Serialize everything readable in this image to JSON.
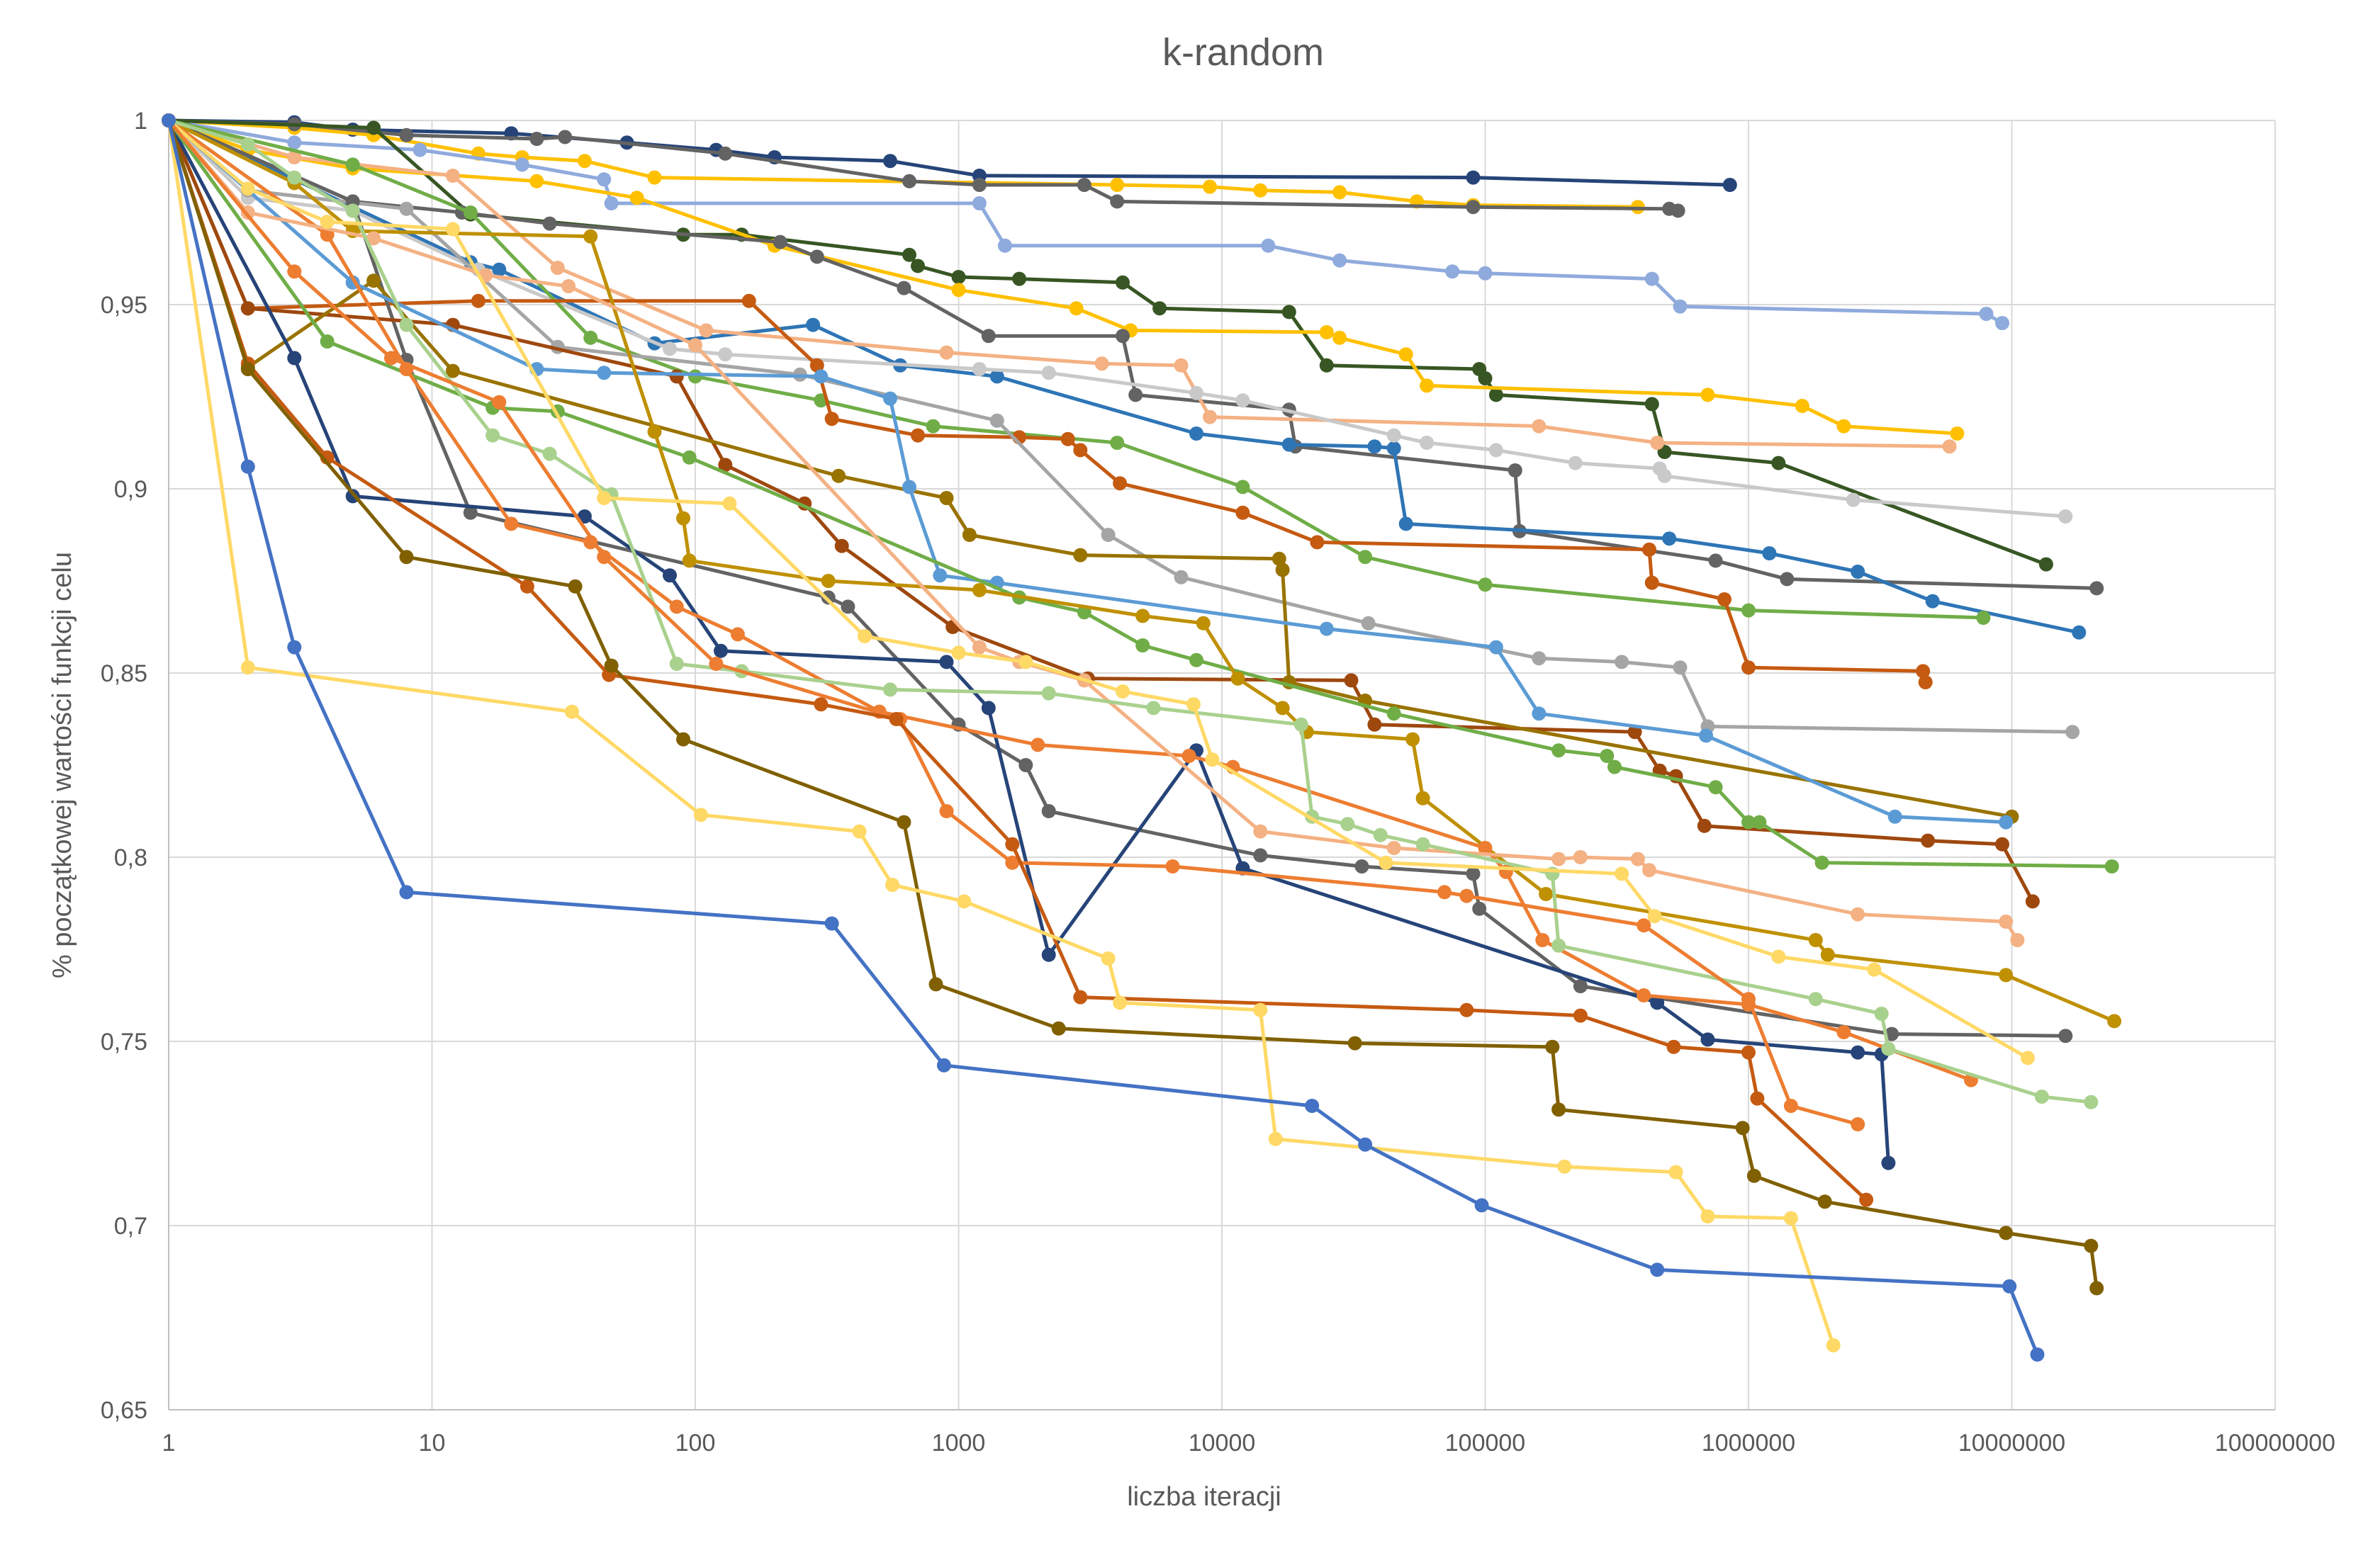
{
  "chart_data": {
    "type": "line",
    "title": "k-random",
    "xlabel": "liczba iteracji",
    "ylabel": "% początkowej wartości funkcji celu",
    "x_scale": "log10",
    "xlim": [
      1,
      100000000
    ],
    "ylim": [
      0.65,
      1
    ],
    "x_ticks": [
      1,
      10,
      100,
      1000,
      10000,
      100000,
      1000000,
      10000000,
      100000000
    ],
    "x_tick_labels": [
      "1",
      "10",
      "100",
      "1000",
      "10000",
      "100000",
      "1000000",
      "10000000",
      "100000000"
    ],
    "y_ticks": [
      0.65,
      0.7,
      0.75,
      0.8,
      0.85,
      0.9,
      0.95,
      1
    ],
    "y_tick_labels": [
      "0,65",
      "0,7",
      "0,75",
      "0,8",
      "0,85",
      "0,9",
      "0,95",
      "1"
    ],
    "grid": "horizontal and vertical major gridlines",
    "legend": "none",
    "series": [
      {
        "color": "#264478",
        "x": [
          1,
          3,
          5,
          20,
          55,
          120,
          200,
          550,
          1200,
          90000,
          850000
        ],
        "y": [
          1,
          0.9995,
          0.9975,
          0.9965,
          0.994,
          0.992,
          0.99,
          0.989,
          0.985,
          0.9845,
          0.9825
        ]
      },
      {
        "color": "#FFC000",
        "x": [
          1,
          3,
          6,
          15,
          22,
          38,
          70,
          4000,
          9000,
          14000,
          28000,
          55000,
          90000,
          380000
        ],
        "y": [
          1,
          0.998,
          0.996,
          0.991,
          0.99,
          0.989,
          0.9845,
          0.9825,
          0.982,
          0.981,
          0.9805,
          0.978,
          0.977,
          0.9765
        ]
      },
      {
        "color": "#636363",
        "x": [
          1,
          3,
          8,
          25,
          32,
          130,
          650,
          1200,
          3000,
          4000,
          90000,
          500000,
          540000
        ],
        "y": [
          1,
          0.999,
          0.996,
          0.995,
          0.9955,
          0.991,
          0.9835,
          0.9825,
          0.9825,
          0.978,
          0.9765,
          0.976,
          0.9755
        ]
      },
      {
        "color": "#8FAADC",
        "x": [
          1,
          3,
          9,
          22,
          45,
          48,
          1200,
          1500,
          15000,
          28000,
          75000,
          100000,
          430000,
          550000,
          8000000,
          9200000
        ],
        "y": [
          1,
          0.994,
          0.992,
          0.988,
          0.984,
          0.9775,
          0.9775,
          0.966,
          0.966,
          0.962,
          0.959,
          0.9585,
          0.957,
          0.9495,
          0.9475,
          0.945
        ]
      },
      {
        "color": "#375623",
        "x": [
          1,
          6,
          14,
          90,
          150,
          650,
          700,
          1000,
          1700,
          4200,
          5800,
          18000,
          25000,
          95000,
          100000,
          110000,
          430000,
          480000,
          1300000,
          13500000
        ],
        "y": [
          1,
          0.998,
          0.9745,
          0.969,
          0.969,
          0.9635,
          0.9605,
          0.9575,
          0.957,
          0.956,
          0.949,
          0.948,
          0.9335,
          0.9325,
          0.93,
          0.9255,
          0.923,
          0.91,
          0.907,
          0.8795
        ]
      },
      {
        "color": "#FFC000",
        "x": [
          1,
          2,
          5,
          25,
          60,
          200,
          1000,
          2800,
          4500,
          25000,
          28000,
          50000,
          60000,
          700000,
          1600000,
          2300000,
          6200000
        ],
        "y": [
          1,
          0.992,
          0.987,
          0.9835,
          0.979,
          0.966,
          0.954,
          0.949,
          0.943,
          0.9425,
          0.941,
          0.9365,
          0.928,
          0.9255,
          0.9225,
          0.917,
          0.915
        ]
      },
      {
        "color": "#636363",
        "x": [
          1,
          5,
          13,
          28,
          210,
          290,
          620,
          1300,
          4200,
          4700,
          18000,
          19000,
          130000,
          135000,
          750000,
          1400000,
          21000000
        ],
        "y": [
          1,
          0.978,
          0.975,
          0.972,
          0.967,
          0.963,
          0.9545,
          0.9415,
          0.9415,
          0.9255,
          0.9215,
          0.9115,
          0.905,
          0.8885,
          0.8805,
          0.8755,
          0.873
        ]
      },
      {
        "color": "#2E75B6",
        "x": [
          1,
          14,
          18,
          70,
          280,
          600,
          1400,
          8000,
          18000,
          38000,
          45000,
          50000,
          500000,
          1200000,
          2600000,
          5000000,
          18000000
        ],
        "y": [
          1,
          0.9615,
          0.9595,
          0.9395,
          0.9445,
          0.9335,
          0.9305,
          0.915,
          0.912,
          0.9115,
          0.911,
          0.8905,
          0.8865,
          0.8825,
          0.8775,
          0.8695,
          0.861
        ]
      },
      {
        "color": "#F4B183",
        "x": [
          1,
          3,
          12,
          30,
          110,
          900,
          3500,
          7000,
          9000,
          160000,
          450000,
          5800000
        ],
        "y": [
          1,
          0.99,
          0.985,
          0.96,
          0.943,
          0.937,
          0.934,
          0.9335,
          0.9195,
          0.917,
          0.9125,
          0.9115
        ]
      },
      {
        "color": "#C9C9C9",
        "x": [
          1,
          2,
          5,
          15,
          80,
          130,
          1200,
          2200,
          8000,
          12000,
          45000,
          60000,
          110000,
          220000,
          460000,
          480000,
          2500000,
          16000000
        ],
        "y": [
          1,
          0.979,
          0.9755,
          0.9595,
          0.938,
          0.9365,
          0.9325,
          0.9315,
          0.926,
          0.924,
          0.9145,
          0.9125,
          0.9105,
          0.907,
          0.9055,
          0.9035,
          0.897,
          0.8925
        ]
      },
      {
        "color": "#70AD47",
        "x": [
          1,
          5,
          14,
          40,
          100,
          300,
          800,
          4000,
          12000,
          35000,
          100000,
          1000000,
          7800000
        ],
        "y": [
          1,
          0.988,
          0.975,
          0.941,
          0.9305,
          0.924,
          0.917,
          0.9125,
          0.9005,
          0.8815,
          0.874,
          0.867,
          0.865
        ]
      },
      {
        "color": "#C55A11",
        "x": [
          1,
          2,
          15,
          160,
          290,
          330,
          700,
          1700,
          2600,
          2900,
          4100,
          12000,
          23000,
          420000,
          430000,
          810000,
          1000000,
          4600000,
          4700000
        ],
        "y": [
          1,
          0.949,
          0.951,
          0.951,
          0.9335,
          0.919,
          0.9145,
          0.914,
          0.9135,
          0.9105,
          0.9015,
          0.8935,
          0.8855,
          0.8835,
          0.8745,
          0.87,
          0.8515,
          0.8505,
          0.8475
        ]
      },
      {
        "color": "#A5A5A5",
        "x": [
          1,
          2,
          8,
          30,
          250,
          1400,
          3700,
          7000,
          36000,
          160000,
          330000,
          550000,
          700000,
          17000000
        ],
        "y": [
          1,
          0.981,
          0.976,
          0.9385,
          0.931,
          0.9185,
          0.8875,
          0.876,
          0.8635,
          0.854,
          0.853,
          0.8515,
          0.8355,
          0.834
        ]
      },
      {
        "color": "#636363",
        "x": [
          1,
          5,
          8,
          14,
          320,
          380,
          1000,
          1800,
          2200,
          14000,
          34000,
          90000,
          95000,
          230000,
          3500000,
          16000000
        ],
        "y": [
          1,
          0.978,
          0.935,
          0.8935,
          0.8705,
          0.868,
          0.836,
          0.825,
          0.8125,
          0.8005,
          0.7975,
          0.7955,
          0.786,
          0.765,
          0.752,
          0.7515
        ]
      },
      {
        "color": "#9E480E",
        "x": [
          1,
          2,
          12,
          85,
          130,
          260,
          360,
          950,
          3100,
          31000,
          38000,
          370000,
          460000,
          530000,
          680000,
          4800000,
          9200000,
          12000000
        ],
        "y": [
          1,
          0.949,
          0.9445,
          0.9305,
          0.9065,
          0.896,
          0.8845,
          0.8625,
          0.8485,
          0.848,
          0.836,
          0.834,
          0.8235,
          0.822,
          0.8085,
          0.8045,
          0.8035,
          0.788
        ]
      },
      {
        "color": "#997300",
        "x": [
          1,
          2,
          6,
          12,
          350,
          900,
          1100,
          2900,
          16500,
          17000,
          18000,
          35000,
          10000000
        ],
        "y": [
          1,
          0.933,
          0.9565,
          0.932,
          0.9035,
          0.8975,
          0.8875,
          0.882,
          0.881,
          0.878,
          0.8475,
          0.8425,
          0.811
        ]
      },
      {
        "color": "#264478",
        "x": [
          1,
          3,
          5,
          38,
          80,
          125,
          900,
          1300,
          2200,
          8000,
          12000,
          450000,
          700000,
          2600000,
          3200000,
          3400000
        ],
        "y": [
          1,
          0.9355,
          0.898,
          0.8925,
          0.8765,
          0.856,
          0.853,
          0.8405,
          0.7735,
          0.829,
          0.797,
          0.7605,
          0.7505,
          0.747,
          0.7465,
          0.717
        ]
      },
      {
        "color": "#5B9BD5",
        "x": [
          1,
          5,
          25,
          45,
          300,
          550,
          650,
          850,
          1400,
          25000,
          110000,
          160000,
          690000,
          3600000,
          9500000
        ],
        "y": [
          1,
          0.956,
          0.9325,
          0.9315,
          0.9305,
          0.9245,
          0.9005,
          0.8765,
          0.8745,
          0.862,
          0.857,
          0.839,
          0.833,
          0.811,
          0.8095
        ]
      },
      {
        "color": "#70AD47",
        "x": [
          1,
          4,
          17,
          30,
          95,
          1700,
          3000,
          5000,
          8000,
          45000,
          190000,
          290000,
          310000,
          750000,
          1000000,
          1100000,
          1900000,
          24000000
        ],
        "y": [
          1,
          0.94,
          0.922,
          0.921,
          0.9085,
          0.8705,
          0.8665,
          0.8575,
          0.8535,
          0.839,
          0.829,
          0.8275,
          0.8245,
          0.819,
          0.8095,
          0.8095,
          0.7985,
          0.7975
        ]
      },
      {
        "color": "#BF9000",
        "x": [
          1,
          3,
          5,
          40,
          70,
          90,
          95,
          320,
          1200,
          5000,
          8500,
          11500,
          17000,
          21000,
          53000,
          58000,
          170000,
          1800000,
          2000000,
          9500000,
          24500000
        ],
        "y": [
          1,
          0.983,
          0.97,
          0.9685,
          0.9155,
          0.892,
          0.8805,
          0.875,
          0.8725,
          0.8655,
          0.8635,
          0.8485,
          0.8405,
          0.834,
          0.832,
          0.816,
          0.79,
          0.7775,
          0.7735,
          0.768,
          0.7555
        ]
      },
      {
        "color": "#ED7D31",
        "x": [
          1,
          4,
          8,
          20,
          40,
          85,
          145,
          500,
          2000,
          7500,
          11000,
          100000,
          120000,
          165000,
          400000,
          1000000,
          2300000,
          7000000
        ],
        "y": [
          1,
          0.969,
          0.9325,
          0.8905,
          0.8855,
          0.868,
          0.8605,
          0.8395,
          0.8305,
          0.8275,
          0.8245,
          0.8025,
          0.796,
          0.7775,
          0.7625,
          0.76,
          0.7525,
          0.7395
        ]
      },
      {
        "color": "#F4B183",
        "x": [
          1,
          2,
          6,
          16,
          33,
          100,
          1200,
          1700,
          3000,
          14000,
          45000,
          190000,
          230000,
          380000,
          420000,
          2600000,
          9500000,
          10500000
        ],
        "y": [
          1,
          0.975,
          0.968,
          0.958,
          0.955,
          0.939,
          0.857,
          0.853,
          0.848,
          0.807,
          0.8025,
          0.7995,
          0.8,
          0.7995,
          0.7965,
          0.7845,
          0.7825,
          0.7775
        ]
      },
      {
        "color": "#A9D18E",
        "x": [
          1,
          2,
          3,
          5,
          8,
          17,
          28,
          48,
          85,
          150,
          550,
          2200,
          5500,
          20000,
          22000,
          30000,
          40000,
          58000,
          180000,
          190000,
          1800000,
          3200000,
          3400000,
          13000000,
          20000000
        ],
        "y": [
          1,
          0.9935,
          0.9845,
          0.9755,
          0.9445,
          0.9145,
          0.9095,
          0.8985,
          0.8525,
          0.8505,
          0.8455,
          0.8445,
          0.8405,
          0.836,
          0.811,
          0.809,
          0.806,
          0.8035,
          0.7955,
          0.776,
          0.7615,
          0.7575,
          0.748,
          0.735,
          0.7335
        ]
      },
      {
        "color": "#FFD966",
        "x": [
          1,
          2,
          4,
          12,
          45,
          135,
          440,
          1000,
          1800,
          4200,
          7800,
          9200,
          42000,
          330000,
          440000,
          1300000,
          3000000,
          11500000
        ],
        "y": [
          1,
          0.9815,
          0.9725,
          0.9705,
          0.8975,
          0.896,
          0.86,
          0.8555,
          0.853,
          0.845,
          0.8415,
          0.8265,
          0.7985,
          0.7955,
          0.784,
          0.773,
          0.7695,
          0.7455
        ]
      },
      {
        "color": "#ED7D31",
        "x": [
          1,
          3,
          7,
          18,
          45,
          120,
          600,
          900,
          1600,
          6500,
          70000,
          85000,
          400000,
          1000000,
          1450000,
          2600000
        ],
        "y": [
          1,
          0.959,
          0.9355,
          0.9235,
          0.8815,
          0.8525,
          0.8375,
          0.8125,
          0.7985,
          0.7975,
          0.7905,
          0.7895,
          0.7815,
          0.7615,
          0.7325,
          0.7275
        ]
      },
      {
        "color": "#C55A11",
        "x": [
          1,
          2,
          4,
          23,
          47,
          300,
          580,
          1600,
          2900,
          85000,
          230000,
          520000,
          1000000,
          1080000,
          2800000
        ],
        "y": [
          1,
          0.934,
          0.9085,
          0.8735,
          0.8495,
          0.8415,
          0.8375,
          0.8035,
          0.762,
          0.7585,
          0.757,
          0.7485,
          0.747,
          0.7345,
          0.707
        ]
      },
      {
        "color": "#806000",
        "x": [
          1,
          2,
          8,
          35,
          48,
          90,
          620,
          820,
          2400,
          32000,
          180000,
          190000,
          950000,
          1050000,
          1950000,
          9500000,
          20000000,
          21000000
        ],
        "y": [
          1,
          0.9325,
          0.8815,
          0.8735,
          0.852,
          0.832,
          0.8095,
          0.7655,
          0.7535,
          0.7495,
          0.7485,
          0.7315,
          0.7265,
          0.7135,
          0.7065,
          0.698,
          0.6945,
          0.683
        ]
      },
      {
        "color": "#FFD966",
        "x": [
          1,
          2,
          34,
          105,
          420,
          560,
          1050,
          3700,
          4100,
          14000,
          16000,
          200000,
          530000,
          700000,
          1450000,
          2100000
        ],
        "y": [
          1,
          0.8515,
          0.8395,
          0.8115,
          0.807,
          0.7925,
          0.788,
          0.7725,
          0.7605,
          0.7585,
          0.7235,
          0.716,
          0.7145,
          0.7025,
          0.702,
          0.6675
        ]
      },
      {
        "color": "#4472C4",
        "x": [
          1,
          2,
          3,
          8,
          330,
          880,
          22000,
          35000,
          97000,
          450000,
          9800000,
          12500000
        ],
        "y": [
          1,
          0.906,
          0.857,
          0.7905,
          0.782,
          0.7435,
          0.7325,
          0.722,
          0.7055,
          0.688,
          0.6835,
          0.665
        ]
      }
    ]
  }
}
